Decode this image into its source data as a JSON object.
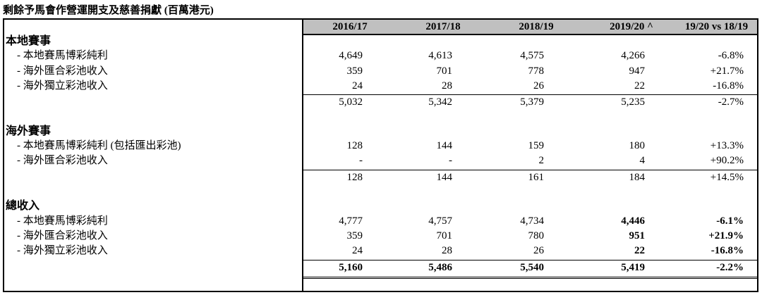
{
  "title": "剩餘予馬會作營運開支及慈善捐獻 (百萬港元)",
  "headers": [
    "2016/17",
    "2017/18",
    "2018/19",
    "2019/20 ^",
    "19/20 vs 18/19"
  ],
  "sections": [
    {
      "heading": "本地賽事",
      "rows": [
        {
          "label": "- 本地賽馬博彩純利",
          "values": [
            "4,649",
            "4,613",
            "4,575",
            "4,266",
            "-6.8%"
          ],
          "bold_last": false
        },
        {
          "label": "- 海外匯合彩池收入",
          "values": [
            "359",
            "701",
            "778",
            "947",
            "+21.7%"
          ],
          "bold_last": false
        },
        {
          "label": "- 海外獨立彩池收入",
          "values": [
            "24",
            "28",
            "26",
            "22",
            "-16.8%"
          ],
          "bold_last": false
        }
      ],
      "total": [
        "5,032",
        "5,342",
        "5,379",
        "5,235",
        "-2.7%"
      ]
    },
    {
      "heading": "海外賽事",
      "rows": [
        {
          "label": "- 本地賽馬博彩純利 (包括匯出彩池)",
          "values": [
            "128",
            "144",
            "159",
            "180",
            "+13.3%"
          ],
          "bold_last": false
        },
        {
          "label": "- 海外匯合彩池收入",
          "values": [
            "-",
            "-",
            "2",
            "4",
            "+90.2%"
          ],
          "bold_last": false
        }
      ],
      "total": [
        "128",
        "144",
        "161",
        "184",
        "+14.5%"
      ]
    },
    {
      "heading": "總收入",
      "rows": [
        {
          "label": "- 本地賽馬博彩純利",
          "values": [
            "4,777",
            "4,757",
            "4,734",
            "4,446",
            "-6.1%"
          ],
          "bold_last": true
        },
        {
          "label": "- 海外匯合彩池收入",
          "values": [
            "359",
            "701",
            "780",
            "951",
            "+21.9%"
          ],
          "bold_last": true
        },
        {
          "label": "- 海外獨立彩池收入",
          "values": [
            "24",
            "28",
            "26",
            "22",
            "-16.8%"
          ],
          "bold_last": true
        }
      ],
      "total": [
        "5,160",
        "5,486",
        "5,540",
        "5,419",
        "-2.2%"
      ]
    }
  ]
}
